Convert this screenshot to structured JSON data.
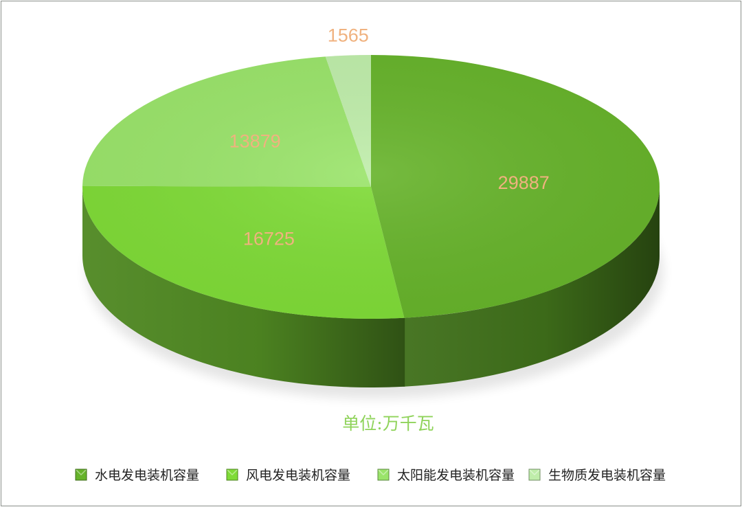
{
  "chart_data": {
    "type": "pie",
    "style": "3d",
    "categories": [
      "水电发电装机容量",
      "风电发电装机容量",
      "太阳能发电装机容量",
      "生物质发电装机容量"
    ],
    "values": [
      29887,
      16725,
      13879,
      1565
    ],
    "unit_label": "单位:万千瓦",
    "legend_position": "bottom",
    "colors": [
      "#66b32a",
      "#7fdb37",
      "#9ae46a",
      "#bfedaa"
    ],
    "label_color": "#f0b27f",
    "unit_color": "#8fd35a"
  }
}
